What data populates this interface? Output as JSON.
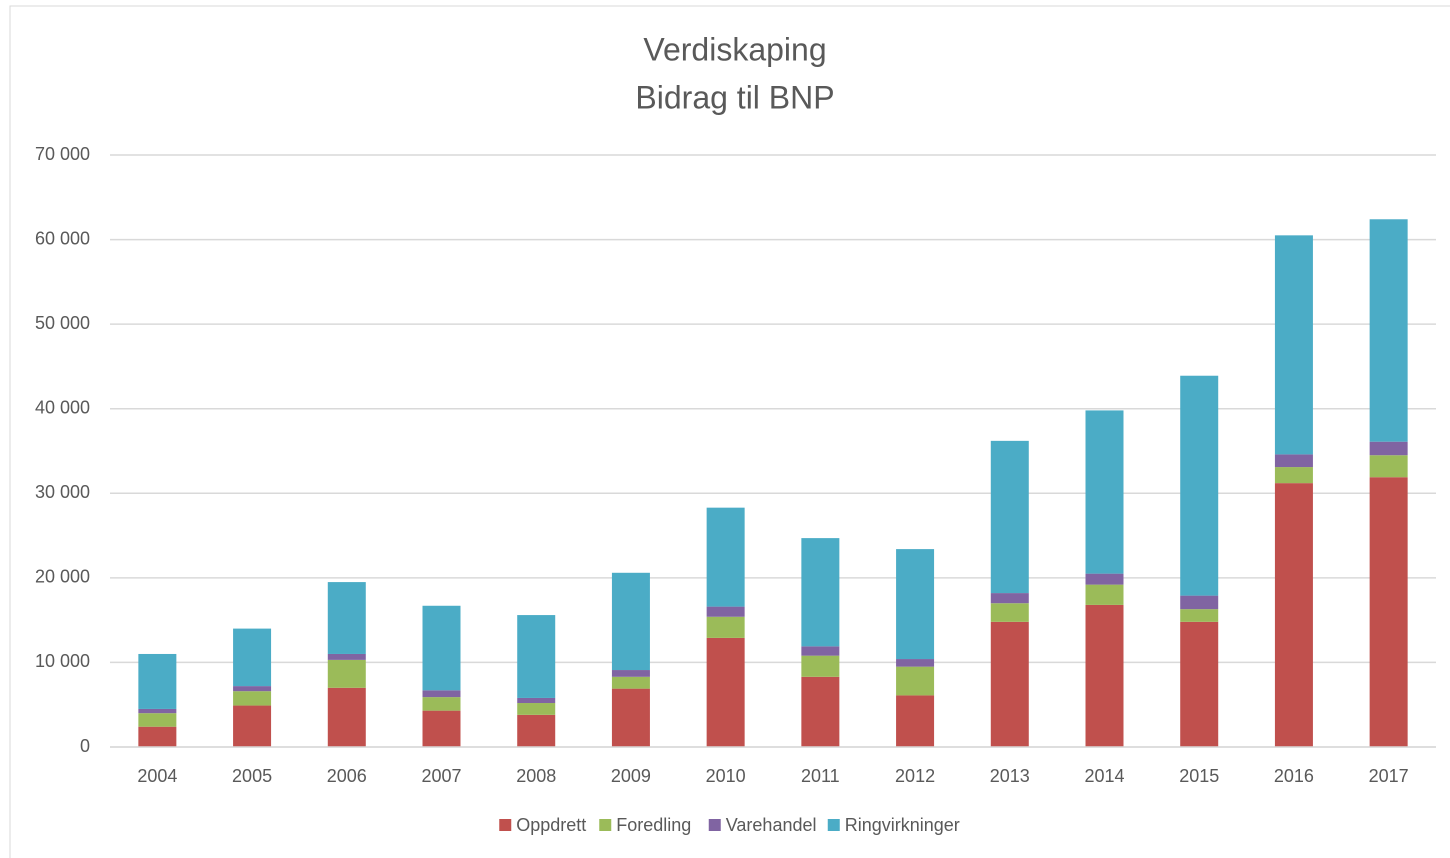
{
  "chart_data": {
    "type": "stacked_bar",
    "title": "Verdiskaping",
    "subtitle": "Bidrag til BNP",
    "categories": [
      "2004",
      "2005",
      "2006",
      "2007",
      "2008",
      "2009",
      "2010",
      "2011",
      "2012",
      "2013",
      "2014",
      "2015",
      "2016",
      "2017"
    ],
    "series": [
      {
        "name": "Oppdrett",
        "color": "#c0504d",
        "values": [
          2400,
          4900,
          7000,
          4300,
          3800,
          6900,
          12900,
          8300,
          6100,
          14800,
          16800,
          14800,
          31200,
          31900
        ]
      },
      {
        "name": "Foredling",
        "color": "#9bbb59",
        "values": [
          1600,
          1700,
          3300,
          1600,
          1400,
          1400,
          2500,
          2500,
          3400,
          2200,
          2400,
          1500,
          1900,
          2600
        ]
      },
      {
        "name": "Varehandel",
        "color": "#8064a2",
        "values": [
          500,
          600,
          700,
          800,
          600,
          800,
          1200,
          1100,
          900,
          1200,
          1300,
          1600,
          1500,
          1600
        ]
      },
      {
        "name": "Ringvirkninger",
        "color": "#4bacc6",
        "values": [
          6500,
          6800,
          8500,
          10000,
          9800,
          11500,
          11700,
          12800,
          13000,
          18000,
          19300,
          26000,
          25900,
          26300
        ]
      }
    ],
    "ylim": [
      0,
      70000
    ],
    "yticks": [
      0,
      {
        "value": 10000,
        "label": "10 000"
      },
      {
        "value": 20000,
        "label": "20 000"
      },
      {
        "value": 30000,
        "label": "30 000"
      },
      {
        "value": 40000,
        "label": "40 000"
      },
      {
        "value": 50000,
        "label": "50 000"
      },
      {
        "value": 60000,
        "label": "60 000"
      },
      {
        "value": 70000,
        "label": "70 000"
      }
    ],
    "grid": true,
    "legend": "bottom"
  }
}
